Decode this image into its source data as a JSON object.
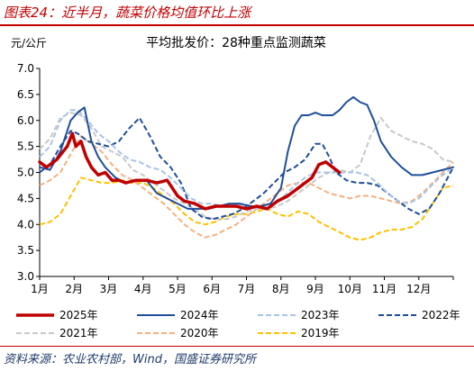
{
  "header": {
    "title": "图表24：近半月，蔬菜价格均值环比上涨"
  },
  "footer": {
    "source": "资料来源：农业农村部，Wind，国盛证券研究所"
  },
  "chart_data": {
    "type": "line",
    "title": "平均批发价：28种重点监测蔬菜",
    "ylabel": "元/公斤",
    "xlabel": "",
    "ylim": [
      3.0,
      7.0
    ],
    "yticks": [
      "3.0",
      "3.5",
      "4.0",
      "4.5",
      "5.0",
      "5.5",
      "6.0",
      "6.5",
      "7.0"
    ],
    "categories": [
      "1月",
      "2月",
      "3月",
      "4月",
      "5月",
      "6月",
      "7月",
      "8月",
      "9月",
      "10月",
      "11月",
      "12月"
    ],
    "x_unit": "month (1 = start of January, 13 = end of December)",
    "grid": false,
    "legend_position": "bottom",
    "series": [
      {
        "name": "2025年",
        "color": "#c00000",
        "style": "solid",
        "width": 3.5,
        "x": [
          1.0,
          1.2,
          1.5,
          1.8,
          1.95,
          2.05,
          2.2,
          2.35,
          2.5,
          2.7,
          2.9,
          3.1,
          3.3,
          3.5,
          3.8,
          4.1,
          4.4,
          4.7,
          5.0,
          5.2,
          5.5,
          5.8,
          6.1,
          6.4,
          6.7,
          7.0,
          7.3,
          7.6,
          7.9,
          8.2,
          8.5,
          8.7,
          8.9,
          9.1,
          9.3,
          9.5,
          9.7
        ],
        "y": [
          5.2,
          5.1,
          5.25,
          5.5,
          5.75,
          5.5,
          5.6,
          5.3,
          5.1,
          4.95,
          5.0,
          4.85,
          4.85,
          4.8,
          4.85,
          4.85,
          4.8,
          4.85,
          4.55,
          4.45,
          4.4,
          4.3,
          4.35,
          4.35,
          4.35,
          4.3,
          4.35,
          4.3,
          4.45,
          4.55,
          4.7,
          4.8,
          4.9,
          5.15,
          5.2,
          5.1,
          5.0
        ]
      },
      {
        "name": "2024年",
        "color": "#1f4e9c",
        "style": "solid",
        "width": 2,
        "x": [
          1.0,
          1.3,
          1.6,
          1.9,
          2.1,
          2.3,
          2.5,
          2.7,
          2.9,
          3.2,
          3.5,
          3.8,
          4.1,
          4.4,
          4.7,
          5.0,
          5.3,
          5.6,
          5.9,
          6.2,
          6.5,
          6.8,
          7.1,
          7.4,
          7.7,
          8.0,
          8.2,
          8.4,
          8.6,
          8.8,
          9.0,
          9.2,
          9.5,
          9.7,
          9.9,
          10.1,
          10.3,
          10.5,
          10.7,
          10.9,
          11.2,
          11.5,
          11.8,
          12.1,
          12.4,
          12.7,
          13.0
        ],
        "y": [
          5.1,
          5.05,
          5.4,
          6.0,
          6.15,
          6.25,
          5.6,
          5.3,
          5.1,
          4.9,
          4.8,
          4.85,
          4.85,
          4.6,
          4.5,
          4.4,
          4.3,
          4.3,
          4.3,
          4.35,
          4.4,
          4.4,
          4.35,
          4.35,
          4.4,
          4.7,
          5.4,
          5.9,
          6.1,
          6.1,
          6.15,
          6.1,
          6.1,
          6.2,
          6.35,
          6.45,
          6.35,
          6.3,
          6.0,
          5.6,
          5.3,
          5.1,
          4.95,
          4.95,
          5.0,
          5.05,
          5.1
        ]
      },
      {
        "name": "2023年",
        "color": "#a9c4e6",
        "style": "dashed",
        "width": 2,
        "x": [
          1.0,
          1.3,
          1.6,
          1.9,
          2.1,
          2.4,
          2.7,
          3.0,
          3.3,
          3.6,
          3.9,
          4.2,
          4.5,
          4.8,
          5.1,
          5.4,
          5.7,
          6.0,
          6.3,
          6.6,
          6.9,
          7.2,
          7.5,
          7.8,
          8.1,
          8.4,
          8.7,
          9.0,
          9.3,
          9.6,
          9.9,
          10.2,
          10.5,
          10.8,
          11.1,
          11.4,
          11.7,
          12.0,
          12.3,
          12.6,
          13.0
        ],
        "y": [
          5.3,
          5.5,
          6.0,
          6.2,
          6.2,
          6.0,
          5.75,
          5.6,
          5.4,
          5.25,
          5.2,
          5.1,
          5.05,
          4.9,
          4.7,
          4.5,
          4.4,
          4.4,
          4.35,
          4.35,
          4.4,
          4.35,
          4.35,
          4.4,
          4.55,
          4.75,
          4.9,
          5.0,
          5.0,
          5.0,
          5.0,
          5.0,
          4.95,
          4.8,
          4.6,
          4.45,
          4.4,
          4.5,
          4.7,
          4.9,
          5.1
        ]
      },
      {
        "name": "2022年",
        "color": "#1f4e9c",
        "style": "dashed",
        "width": 2,
        "x": [
          1.0,
          1.3,
          1.6,
          1.9,
          2.1,
          2.4,
          2.7,
          3.0,
          3.3,
          3.6,
          3.9,
          4.2,
          4.5,
          4.8,
          5.1,
          5.4,
          5.7,
          6.0,
          6.3,
          6.6,
          6.9,
          7.2,
          7.5,
          7.8,
          8.1,
          8.4,
          8.7,
          9.0,
          9.2,
          9.4,
          9.6,
          9.9,
          10.2,
          10.5,
          10.8,
          11.1,
          11.4,
          11.7,
          12.0,
          12.3,
          12.6,
          13.0
        ],
        "y": [
          5.0,
          5.15,
          5.5,
          5.8,
          5.75,
          5.6,
          5.55,
          5.5,
          5.6,
          5.85,
          6.05,
          5.7,
          5.3,
          5.1,
          4.8,
          4.3,
          4.15,
          4.1,
          4.15,
          4.2,
          4.3,
          4.45,
          4.6,
          4.8,
          5.0,
          5.1,
          5.25,
          5.55,
          5.55,
          5.3,
          5.0,
          4.85,
          4.8,
          4.8,
          4.75,
          4.6,
          4.45,
          4.3,
          4.2,
          4.3,
          4.6,
          5.1
        ]
      },
      {
        "name": "2021年",
        "color": "#c8c8c8",
        "style": "dashed",
        "width": 2,
        "x": [
          1.0,
          1.3,
          1.6,
          1.9,
          2.2,
          2.5,
          2.8,
          3.1,
          3.4,
          3.7,
          4.0,
          4.3,
          4.6,
          4.9,
          5.2,
          5.5,
          5.8,
          6.1,
          6.4,
          6.7,
          7.0,
          7.3,
          7.6,
          7.9,
          8.2,
          8.5,
          8.8,
          9.1,
          9.4,
          9.7,
          10.0,
          10.3,
          10.6,
          10.9,
          11.2,
          11.5,
          11.8,
          12.1,
          12.4,
          12.7,
          13.0
        ],
        "y": [
          5.45,
          5.65,
          6.05,
          6.15,
          6.1,
          5.85,
          5.5,
          5.4,
          5.3,
          5.05,
          4.95,
          4.8,
          4.65,
          4.5,
          4.4,
          4.3,
          4.15,
          4.1,
          4.1,
          4.15,
          4.25,
          4.3,
          4.3,
          4.35,
          4.45,
          4.6,
          4.75,
          4.9,
          5.0,
          5.05,
          5.0,
          5.15,
          5.7,
          6.05,
          5.8,
          5.7,
          5.6,
          5.55,
          5.45,
          5.25,
          5.2
        ]
      },
      {
        "name": "2020年",
        "color": "#f4b183",
        "style": "dashed",
        "width": 2,
        "x": [
          1.0,
          1.3,
          1.6,
          1.9,
          2.2,
          2.5,
          2.8,
          3.1,
          3.4,
          3.7,
          4.0,
          4.3,
          4.6,
          4.9,
          5.2,
          5.5,
          5.8,
          6.1,
          6.4,
          6.7,
          7.0,
          7.3,
          7.6,
          7.9,
          8.2,
          8.5,
          8.8,
          9.1,
          9.4,
          9.7,
          10.0,
          10.3,
          10.6,
          10.9,
          11.2,
          11.5,
          11.8,
          12.1,
          12.4,
          12.7,
          13.0
        ],
        "y": [
          4.75,
          4.85,
          5.0,
          5.35,
          5.7,
          5.55,
          5.4,
          5.15,
          4.95,
          4.85,
          4.7,
          4.55,
          4.4,
          4.2,
          4.0,
          3.85,
          3.75,
          3.8,
          3.9,
          4.0,
          4.15,
          4.3,
          4.45,
          4.6,
          4.75,
          4.8,
          4.8,
          4.7,
          4.6,
          4.55,
          4.5,
          4.55,
          4.55,
          4.5,
          4.45,
          4.4,
          4.45,
          4.6,
          4.8,
          5.0,
          5.2
        ]
      },
      {
        "name": "2019年",
        "color": "#ffc000",
        "style": "dashed",
        "width": 2,
        "x": [
          1.0,
          1.3,
          1.6,
          1.9,
          2.2,
          2.5,
          2.8,
          3.1,
          3.4,
          3.7,
          4.0,
          4.3,
          4.6,
          4.9,
          5.2,
          5.5,
          5.8,
          6.1,
          6.4,
          6.7,
          7.0,
          7.3,
          7.6,
          7.9,
          8.2,
          8.5,
          8.8,
          9.1,
          9.4,
          9.7,
          10.0,
          10.3,
          10.6,
          10.9,
          11.2,
          11.5,
          11.8,
          12.1,
          12.4,
          12.7,
          13.0
        ],
        "y": [
          4.0,
          4.05,
          4.2,
          4.55,
          4.9,
          4.85,
          4.8,
          4.8,
          4.85,
          4.8,
          4.8,
          4.7,
          4.55,
          4.4,
          4.2,
          4.05,
          4.0,
          4.05,
          4.15,
          4.2,
          4.2,
          4.25,
          4.3,
          4.2,
          4.15,
          4.25,
          4.2,
          4.05,
          3.95,
          3.85,
          3.75,
          3.7,
          3.75,
          3.85,
          3.9,
          3.9,
          3.95,
          4.1,
          4.4,
          4.7,
          4.75
        ]
      }
    ]
  }
}
